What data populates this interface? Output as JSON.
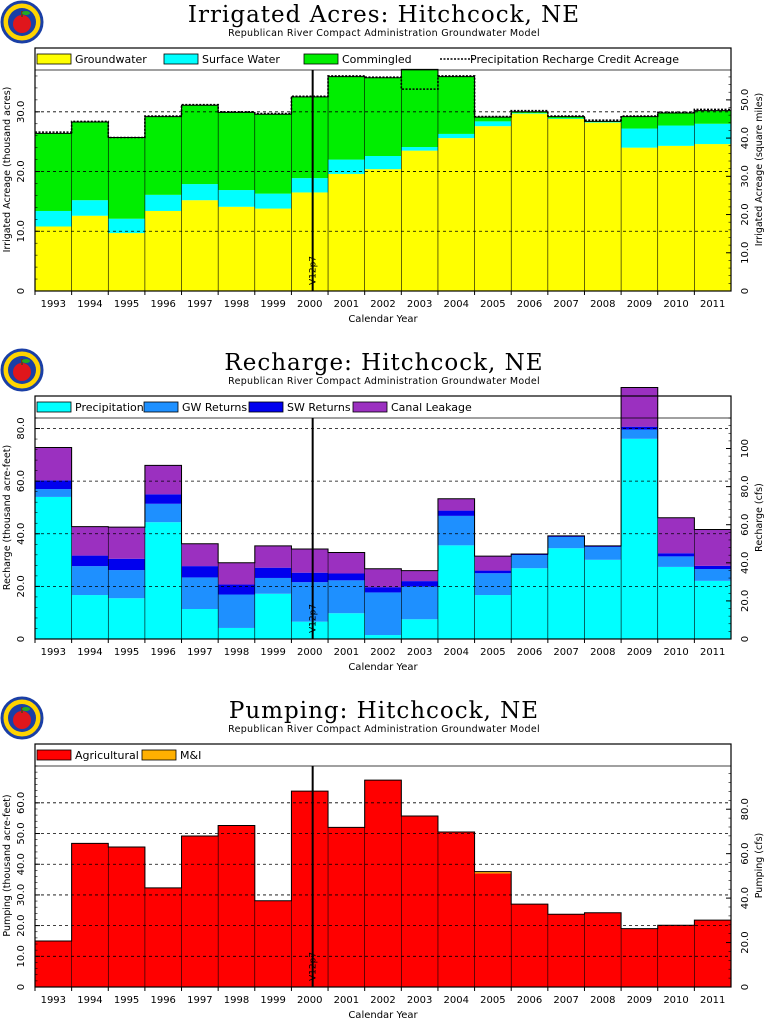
{
  "colors": {
    "groundwater": "#ffff00",
    "surface_water": "#00ffff",
    "commingled": "#00ee00",
    "precipitation": "#00ffff",
    "gw_returns": "#1e90ff",
    "sw_returns": "#0000ee",
    "canal_leakage": "#9b30c0",
    "agricultural": "#ff0000",
    "mi": "#ffb000"
  },
  "icons": [
    "apple-logo-icon"
  ],
  "shared": {
    "subtitle": "Republican River Compact Administration Groundwater Model",
    "xlabel": "Calendar Year",
    "marker_label": "V12p7",
    "years": [
      "1993",
      "1994",
      "1995",
      "1996",
      "1997",
      "1998",
      "1999",
      "2000",
      "2001",
      "2002",
      "2003",
      "2004",
      "2005",
      "2006",
      "2007",
      "2008",
      "2009",
      "2010",
      "2011"
    ]
  },
  "chart_data": [
    {
      "id": "irrigated",
      "type": "bar",
      "stacked": true,
      "title": "Irrigated Acres: Hitchcock, NE",
      "subtitle": "Republican River Compact Administration Groundwater Model",
      "xlabel": "Calendar Year",
      "ylabel": "Irrigated Acreage (thousand acres)",
      "ylabel_right": "Irrigated Acreage (square miles)",
      "ylim": [
        0,
        37
      ],
      "yticks": [
        0,
        10,
        20,
        30
      ],
      "yticks_labels": [
        "0",
        "10.0",
        "20.0",
        "30.0"
      ],
      "right_factor": 1.5625,
      "right_ticks": [
        0,
        10,
        20,
        30,
        40,
        50
      ],
      "right_ticks_labels": [
        "0",
        "10.0",
        "20.0",
        "30.0",
        "40.0",
        "50.0"
      ],
      "categories": [
        "1993",
        "1994",
        "1995",
        "1996",
        "1997",
        "1998",
        "1999",
        "2000",
        "2001",
        "2002",
        "2003",
        "2004",
        "2005",
        "2006",
        "2007",
        "2008",
        "2009",
        "2010",
        "2011"
      ],
      "legend": "top",
      "series": [
        {
          "name": "Groundwater",
          "color_key": "groundwater",
          "values": [
            10.8,
            12.6,
            9.7,
            13.4,
            15.2,
            14.1,
            13.8,
            16.5,
            19.6,
            20.4,
            23.5,
            25.6,
            27.6,
            29.7,
            28.8,
            28.2,
            24.0,
            24.3,
            24.6
          ]
        },
        {
          "name": "Surface Water",
          "color_key": "surface_water",
          "values": [
            2.6,
            2.6,
            2.4,
            2.7,
            2.7,
            2.8,
            2.5,
            2.4,
            2.4,
            2.2,
            0.6,
            0.7,
            0.8,
            0.1,
            0.1,
            0.1,
            3.2,
            3.4,
            3.4
          ]
        },
        {
          "name": "Commingled",
          "color_key": "commingled",
          "values": [
            13.0,
            13.1,
            13.6,
            13.1,
            13.2,
            13.0,
            13.3,
            13.6,
            13.9,
            13.1,
            13.0,
            9.6,
            0.7,
            0.2,
            0.3,
            0.1,
            2.0,
            2.1,
            2.2
          ]
        }
      ],
      "line_series": {
        "name": "Precipitation Recharge Credit Acreage",
        "values": [
          26.6,
          28.4,
          25.7,
          29.3,
          31.2,
          30.0,
          29.7,
          32.6,
          36.0,
          35.8,
          33.8,
          36.0,
          29.2,
          30.2,
          29.3,
          28.6,
          29.3,
          29.9,
          30.4
        ]
      }
    },
    {
      "id": "recharge",
      "type": "bar",
      "stacked": true,
      "title": "Recharge: Hitchcock, NE",
      "subtitle": "Republican River Compact Administration Groundwater Model",
      "xlabel": "Calendar Year",
      "ylabel": "Recharge (thousand acre-feet)",
      "ylabel_right": "Recharge (cfs)",
      "ylim": [
        0,
        84
      ],
      "yticks": [
        0,
        20,
        40,
        60,
        80
      ],
      "yticks_labels": [
        "0",
        "20.0",
        "40.0",
        "60.0",
        "80.0"
      ],
      "right_factor": 1.3812,
      "right_ticks": [
        0,
        20,
        40,
        60,
        80,
        100
      ],
      "right_ticks_labels": [
        "0",
        "20.0",
        "40.0",
        "60.0",
        "80.0",
        "100"
      ],
      "categories": [
        "1993",
        "1994",
        "1995",
        "1996",
        "1997",
        "1998",
        "1999",
        "2000",
        "2001",
        "2002",
        "2003",
        "2004",
        "2005",
        "2006",
        "2007",
        "2008",
        "2009",
        "2010",
        "2011"
      ],
      "legend": "top",
      "series": [
        {
          "name": "Precipitation",
          "color_key": "precipitation",
          "values": [
            54.0,
            16.7,
            15.5,
            44.4,
            11.4,
            4.2,
            17.2,
            6.6,
            9.8,
            1.5,
            7.5,
            35.6,
            16.7,
            26.9,
            34.5,
            30.1,
            76.1,
            27.4,
            22.1
          ]
        },
        {
          "name": "GW Returns",
          "color_key": "gw_returns",
          "values": [
            3.0,
            11.0,
            10.7,
            7.0,
            12.0,
            12.7,
            6.0,
            15.0,
            12.5,
            16.2,
            12.4,
            11.2,
            8.3,
            5.0,
            4.3,
            4.9,
            3.5,
            4.0,
            4.5
          ]
        },
        {
          "name": "SW Returns",
          "color_key": "sw_returns",
          "values": [
            3.3,
            4.0,
            4.3,
            3.6,
            4.3,
            3.8,
            3.9,
            3.6,
            2.6,
            2.0,
            2.1,
            2.0,
            1.0,
            0.4,
            0.4,
            0.4,
            1.1,
            1.2,
            1.2
          ]
        },
        {
          "name": "Canal Leakage",
          "color_key": "canal_leakage",
          "values": [
            12.5,
            11.0,
            12.0,
            11.0,
            8.5,
            8.3,
            8.3,
            9.0,
            8.0,
            7.0,
            4.0,
            4.5,
            5.5,
            0.0,
            0.0,
            0.0,
            14.9,
            13.5,
            13.8
          ]
        }
      ]
    },
    {
      "id": "pumping",
      "type": "bar",
      "stacked": true,
      "title": "Pumping: Hitchcock, NE",
      "subtitle": "Republican River Compact Administration Groundwater Model",
      "xlabel": "Calendar Year",
      "ylabel": "Pumping (thousand acre-feet)",
      "ylabel_right": "Pumping (cfs)",
      "ylim": [
        0,
        72
      ],
      "yticks": [
        0,
        10,
        20,
        30,
        40,
        50,
        60
      ],
      "yticks_labels": [
        "0",
        "10.0",
        "20.0",
        "30.0",
        "40.0",
        "50.0",
        "60.0"
      ],
      "right_factor": 1.3812,
      "right_ticks": [
        0,
        20,
        40,
        60,
        80
      ],
      "right_ticks_labels": [
        "0",
        "20.0",
        "40.0",
        "60.0",
        "80.0"
      ],
      "categories": [
        "1993",
        "1994",
        "1995",
        "1996",
        "1997",
        "1998",
        "1999",
        "2000",
        "2001",
        "2002",
        "2003",
        "2004",
        "2005",
        "2006",
        "2007",
        "2008",
        "2009",
        "2010",
        "2011"
      ],
      "legend": "top",
      "series": [
        {
          "name": "Agricultural",
          "color_key": "agricultural",
          "values": [
            15.0,
            46.8,
            45.6,
            32.3,
            49.2,
            52.6,
            28.1,
            63.8,
            52.0,
            67.4,
            55.7,
            50.5,
            37.0,
            27.0,
            23.7,
            24.2,
            19.0,
            20.1,
            21.8
          ]
        },
        {
          "name": "M&I",
          "color_key": "mi",
          "values": [
            0.0,
            0.0,
            0.0,
            0.0,
            0.0,
            0.0,
            0.0,
            0.0,
            0.0,
            0.0,
            0.0,
            0.0,
            0.6,
            0.0,
            0.0,
            0.0,
            0.0,
            0.0,
            0.0
          ]
        }
      ]
    }
  ]
}
